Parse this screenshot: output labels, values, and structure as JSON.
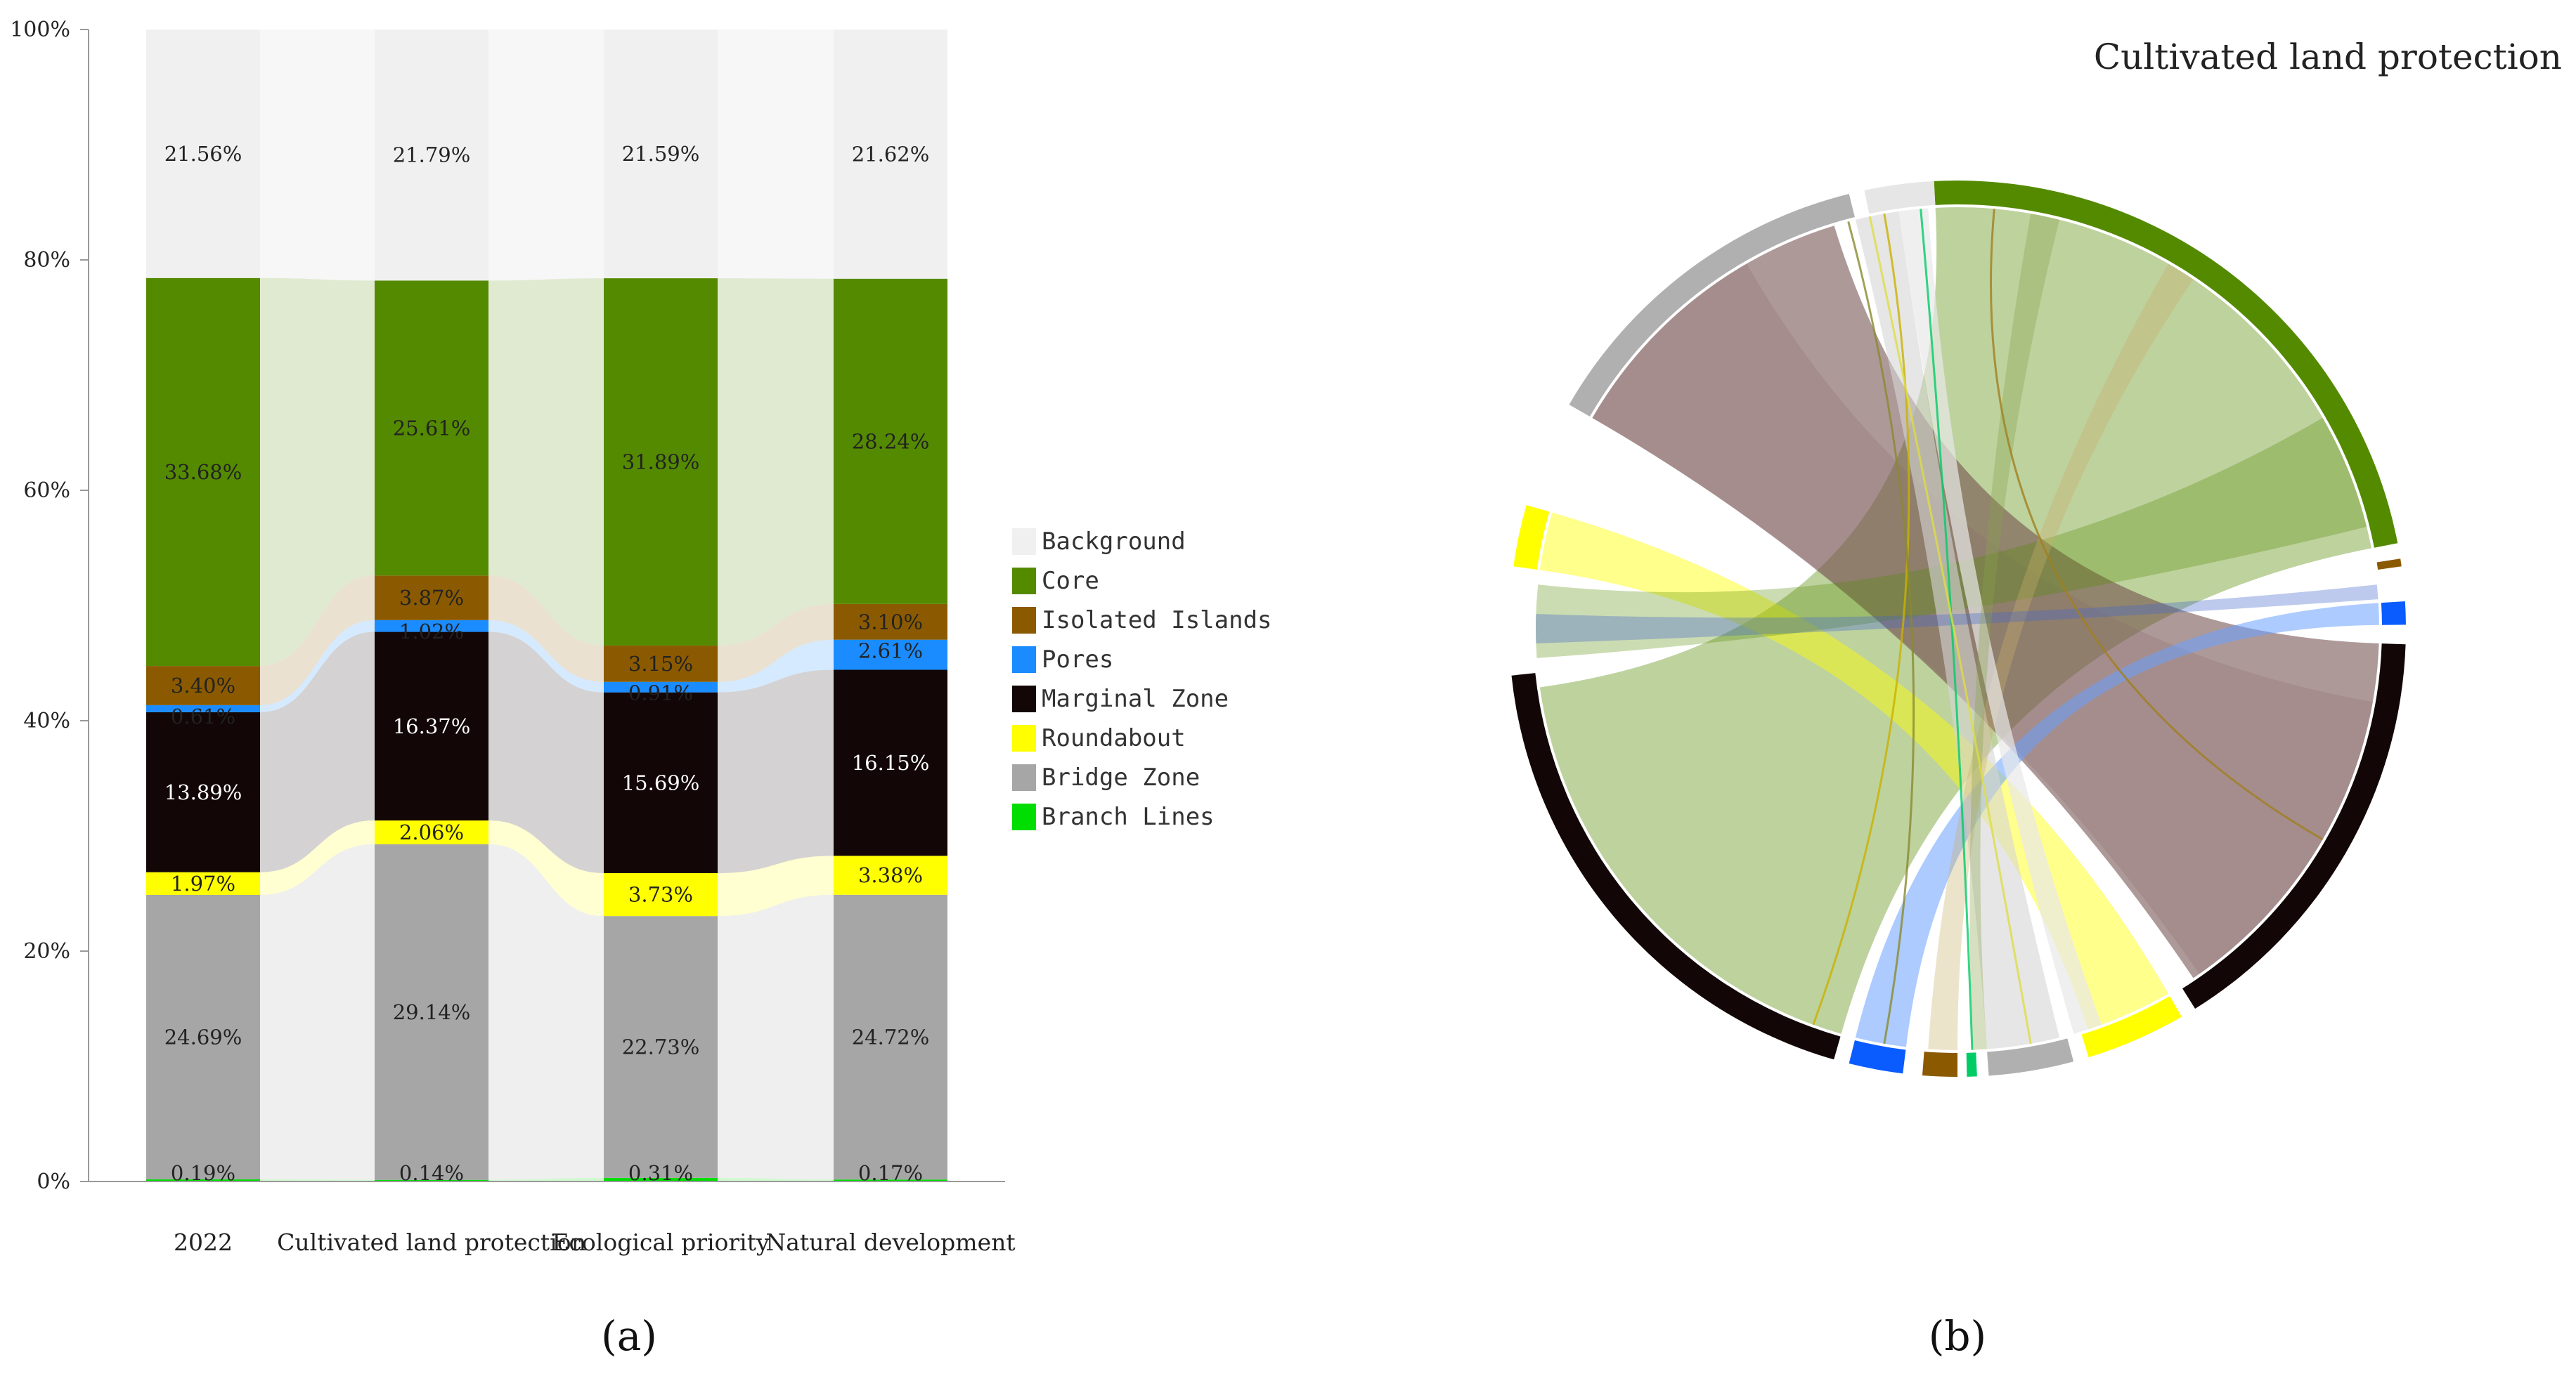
{
  "chart_data": [
    {
      "type": "bar",
      "stacked": true,
      "normalized": true,
      "panel_caption": "(a)",
      "ylim": [
        0,
        100
      ],
      "y_ticks": [
        "0%",
        "20%",
        "40%",
        "60%",
        "80%",
        "100%"
      ],
      "categories": [
        "2022",
        "Cultivated land protection",
        "Ecological priority",
        "Natural development"
      ],
      "series": [
        {
          "name": "Branch Lines",
          "color": "#00dd00",
          "values": [
            0.19,
            0.14,
            0.31,
            0.17
          ],
          "labels": [
            "0.19%",
            "0.14%",
            "0.31%",
            "0.17%"
          ]
        },
        {
          "name": "Bridge Zone",
          "color": "#a6a6a6",
          "values": [
            24.69,
            29.14,
            22.73,
            24.72
          ],
          "labels": [
            "24.69%",
            "29.14%",
            "22.73%",
            "24.72%"
          ]
        },
        {
          "name": "Roundabout",
          "color": "#ffff00",
          "values": [
            1.97,
            2.06,
            3.73,
            3.38
          ],
          "labels": [
            "1.97%",
            "2.06%",
            "3.73%",
            "3.38%"
          ]
        },
        {
          "name": "Marginal Zone",
          "color": "#120606",
          "values": [
            13.89,
            16.37,
            15.69,
            16.15
          ],
          "labels": [
            "13.89%",
            "16.37%",
            "15.69%",
            "16.15%"
          ]
        },
        {
          "name": "Pores",
          "color": "#1a8cff",
          "values": [
            0.61,
            1.02,
            0.91,
            2.61
          ],
          "labels": [
            "0.61%",
            "1.02%",
            "0.91%",
            "2.61%"
          ]
        },
        {
          "name": "Isolated Islands",
          "color": "#8b5a00",
          "values": [
            3.4,
            3.87,
            3.15,
            3.1
          ],
          "labels": [
            "3.40%",
            "3.87%",
            "3.15%",
            "3.10%"
          ]
        },
        {
          "name": "Core",
          "color": "#548a00",
          "values": [
            33.68,
            25.61,
            31.89,
            28.24
          ],
          "labels": [
            "33.68%",
            "25.61%",
            "31.89%",
            "28.24%"
          ]
        },
        {
          "name": "Background",
          "color": "#f0f0f0",
          "values": [
            21.56,
            21.79,
            21.59,
            21.62
          ],
          "labels": [
            "21.56%",
            "21.79%",
            "21.59%",
            "21.62%"
          ]
        }
      ],
      "legend": [
        "Background",
        "Core",
        "Isolated Islands",
        "Pores",
        "Marginal Zone",
        "Roundabout",
        "Bridge Zone",
        "Branch Lines"
      ],
      "legend_position": "right"
    },
    {
      "type": "chord",
      "panel_caption": "(b)",
      "title": "Cultivated land protection",
      "nodes": [
        {
          "name": "Core",
          "color": "#548a00"
        },
        {
          "name": "Isolated Islands",
          "color": "#8b5a00"
        },
        {
          "name": "Pores",
          "color": "#0a5cff"
        },
        {
          "name": "Marginal Zone",
          "color": "#120606"
        },
        {
          "name": "Roundabout",
          "color": "#ffff00"
        },
        {
          "name": "Bridge Zone",
          "color": "#b0b0b0"
        },
        {
          "name": "Branch Lines",
          "color": "#00cc66"
        },
        {
          "name": "Background",
          "color": "#e6e6e6"
        }
      ],
      "node_arcs_deg": [
        {
          "node": "Core",
          "start": -3,
          "end": 79
        },
        {
          "node": "Isolated Islands",
          "start": 81,
          "end": 82
        },
        {
          "node": "Pores",
          "start": 86.5,
          "end": 89.5
        },
        {
          "node": "Marginal Zone",
          "start": 92,
          "end": 148
        },
        {
          "node": "Roundabout",
          "start": 150,
          "end": 163
        },
        {
          "node": "Bridge Zone",
          "start": 165,
          "end": 176
        },
        {
          "node": "Branch Lines",
          "start": 177.5,
          "end": 178.8
        },
        {
          "node": "Isolated Islands",
          "start": 180,
          "end": 184.5
        },
        {
          "node": "Pores",
          "start": 187,
          "end": 194
        },
        {
          "node": "Marginal Zone",
          "start": 196,
          "end": 264
        },
        {
          "node": "Roundabout",
          "start": 278,
          "end": 286
        },
        {
          "node": "Bridge Zone",
          "start": 300,
          "end": 346
        },
        {
          "node": "Background",
          "start": 348,
          "end": 357
        }
      ]
    }
  ],
  "captions": {
    "a": "(a)",
    "b": "(b)"
  }
}
